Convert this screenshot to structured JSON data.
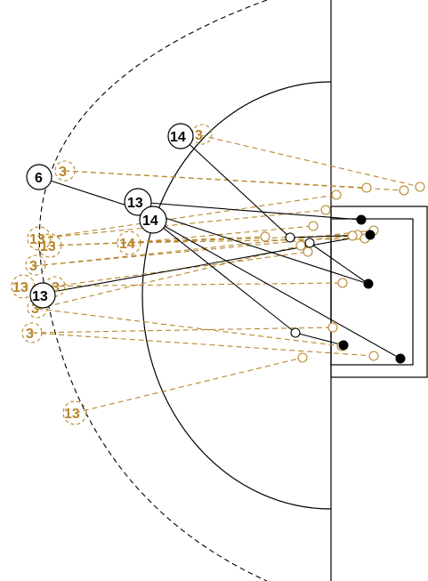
{
  "labels": {
    "gold_3": "3",
    "gold_13": "13",
    "gold_14": "14",
    "black_6": "6",
    "black_13": "13",
    "black_14": "14"
  },
  "colors": {
    "gold": "#b8862b",
    "black": "#000000",
    "background": "#ffffff"
  }
}
